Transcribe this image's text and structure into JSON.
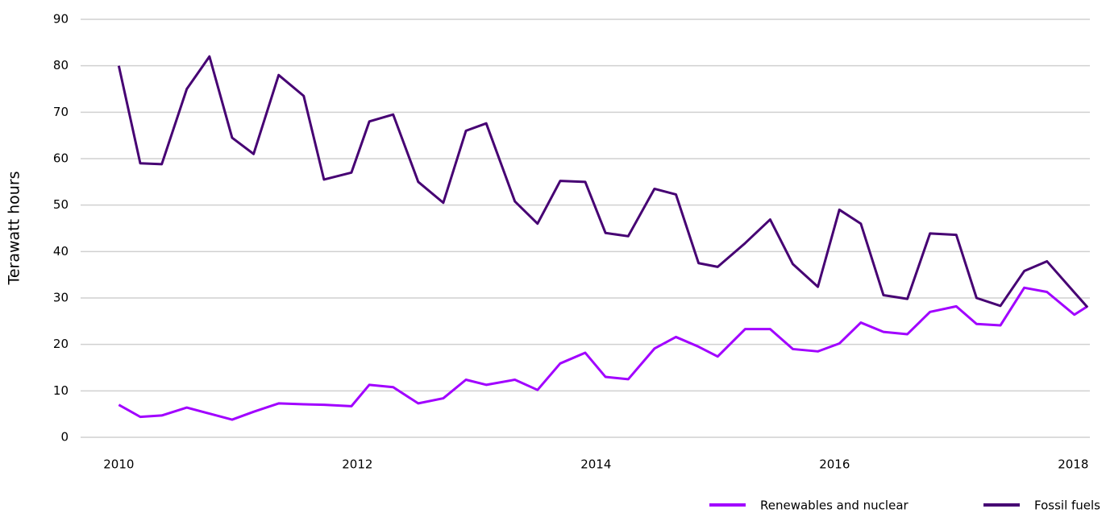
{
  "chart_data": {
    "type": "line",
    "y_label": "Terawatt hours",
    "x": [
      2010.0,
      2010.18,
      2010.36,
      2010.57,
      2010.76,
      2010.95,
      2011.13,
      2011.34,
      2011.55,
      2011.72,
      2011.95,
      2012.1,
      2012.3,
      2012.51,
      2012.72,
      2012.91,
      2013.08,
      2013.32,
      2013.51,
      2013.7,
      2013.91,
      2014.08,
      2014.27,
      2014.49,
      2014.67,
      2014.86,
      2015.02,
      2015.25,
      2015.46,
      2015.65,
      2015.86,
      2016.04,
      2016.22,
      2016.41,
      2016.61,
      2016.8,
      2017.02,
      2017.19,
      2017.39,
      2017.59,
      2017.78,
      2018.01,
      2018.12
    ],
    "series": [
      {
        "name": "Renewables and nuclear",
        "color": "#a100ff",
        "values": [
          7,
          4.4,
          4.7,
          6.4,
          5.1,
          3.8,
          5.5,
          7.3,
          7.1,
          7,
          6.7,
          11.3,
          10.8,
          7.3,
          8.4,
          12.4,
          11.3,
          12.4,
          10.2,
          15.9,
          18.2,
          13,
          12.5,
          19.1,
          21.6,
          19.5,
          17.4,
          23.3,
          23.3,
          19,
          18.5,
          20.2,
          24.7,
          22.7,
          22.2,
          27,
          28.2,
          24.4,
          24.1,
          32.2,
          31.3,
          26.4,
          28.2
        ]
      },
      {
        "name": "Fossil fuels",
        "color": "#460073",
        "values": [
          80,
          59,
          58.8,
          75,
          82,
          64.5,
          61,
          78,
          73.5,
          55.5,
          57,
          68,
          69.5,
          55,
          50.5,
          66,
          67.6,
          50.8,
          46,
          55.2,
          55,
          44,
          43.3,
          53.5,
          52.3,
          37.5,
          36.7,
          41.8,
          46.9,
          37.3,
          32.4,
          49,
          46,
          30.6,
          29.8,
          43.9,
          43.6,
          30,
          28.3,
          35.8,
          37.9,
          31.2,
          28
        ]
      }
    ],
    "xlim": [
      2009.68,
      2018.14
    ],
    "xticks": [
      2010,
      2012,
      2014,
      2016,
      2018
    ],
    "ylim": [
      0,
      90
    ],
    "yticks": [
      0,
      10,
      20,
      30,
      40,
      50,
      60,
      70,
      80,
      90
    ],
    "grid": true,
    "legend": "bottom-right"
  }
}
